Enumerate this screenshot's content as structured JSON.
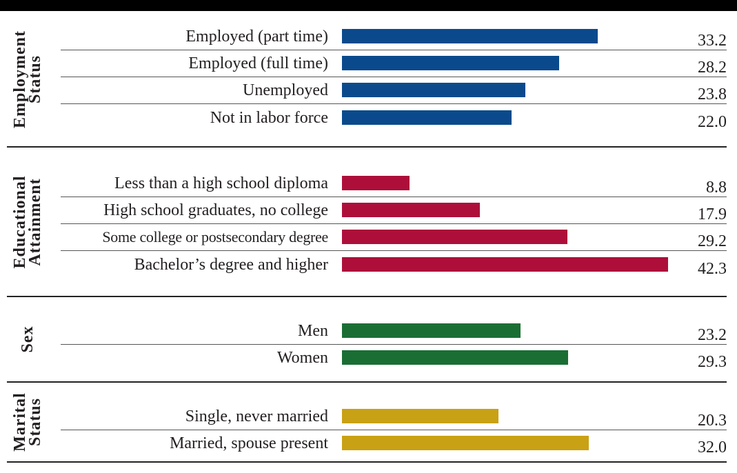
{
  "chart_data": {
    "type": "bar",
    "orientation": "horizontal",
    "groups": [
      {
        "title_lines": [
          "Employment",
          "Status"
        ],
        "color": "#0a4a8c",
        "categories": [
          "Employed (part time)",
          "Employed (full time)",
          "Unemployed",
          "Not in labor force"
        ],
        "values": [
          33.2,
          28.2,
          23.8,
          22.0
        ],
        "value_labels": [
          "33.2",
          "28.2",
          "23.8",
          "22.0"
        ]
      },
      {
        "title_lines": [
          "Educational",
          "Attainment"
        ],
        "color": "#ad0f3a",
        "categories": [
          "Less than a high school diploma",
          "High school graduates, no college",
          "Some college or postsecondary degree",
          "Bachelor’s degree and higher"
        ],
        "values": [
          8.8,
          17.9,
          29.2,
          42.3
        ],
        "value_labels": [
          "8.8",
          "17.9",
          "29.2",
          "42.3"
        ]
      },
      {
        "title_lines": [
          "Sex"
        ],
        "color": "#1a6e34",
        "categories": [
          "Men",
          "Women"
        ],
        "values": [
          23.2,
          29.3
        ],
        "value_labels": [
          "23.2",
          "29.3"
        ]
      },
      {
        "title_lines": [
          "Marital",
          "Status"
        ],
        "color": "#c9a114",
        "categories": [
          "Single, never married",
          "Married, spouse present"
        ],
        "values": [
          20.3,
          32.0
        ],
        "value_labels": [
          "20.3",
          "32.0"
        ]
      }
    ],
    "xlim": [
      0,
      42.3
    ],
    "grid": false
  }
}
